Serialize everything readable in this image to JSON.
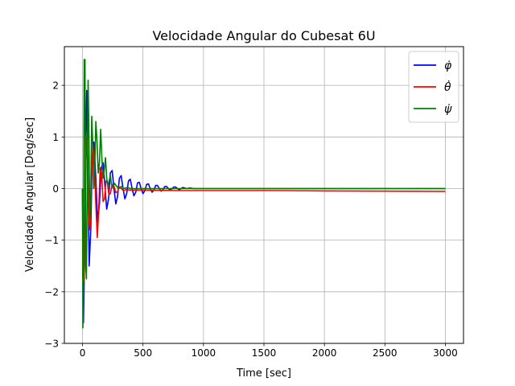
{
  "chart_data": {
    "type": "line",
    "title": "Velocidade Angular do Cubesat 6U",
    "xlabel": "Time [sec]",
    "ylabel": "Velocidade Angular [Deg/sec]",
    "xlim": [
      -150,
      3150
    ],
    "ylim": [
      -3,
      2.75
    ],
    "xticks": [
      0,
      500,
      1000,
      1500,
      2000,
      2500,
      3000
    ],
    "xtick_labels": [
      "0",
      "500",
      "1000",
      "1500",
      "2000",
      "2500",
      "3000"
    ],
    "yticks": [
      -3,
      -2,
      -1,
      0,
      1,
      2
    ],
    "ytick_labels": [
      "−3",
      "−2",
      "−1",
      "0",
      "1",
      "2"
    ],
    "grid": true,
    "legend_position": "top-right",
    "series": [
      {
        "name": "φ̇",
        "color": "#0000ff",
        "points": [
          [
            0,
            0
          ],
          [
            8,
            -2.6
          ],
          [
            16,
            -1.4
          ],
          [
            25,
            0.7
          ],
          [
            35,
            1.9
          ],
          [
            45,
            0.3
          ],
          [
            55,
            -1.5
          ],
          [
            68,
            -0.8
          ],
          [
            80,
            0.6
          ],
          [
            95,
            0.9
          ],
          [
            110,
            0.2
          ],
          [
            125,
            -0.65
          ],
          [
            140,
            -0.3
          ],
          [
            155,
            0.4
          ],
          [
            170,
            0.5
          ],
          [
            185,
            0.05
          ],
          [
            200,
            -0.4
          ],
          [
            215,
            -0.2
          ],
          [
            230,
            0.3
          ],
          [
            245,
            0.35
          ],
          [
            260,
            0.0
          ],
          [
            275,
            -0.3
          ],
          [
            290,
            -0.15
          ],
          [
            305,
            0.2
          ],
          [
            320,
            0.25
          ],
          [
            335,
            0.0
          ],
          [
            350,
            -0.2
          ],
          [
            365,
            -0.1
          ],
          [
            380,
            0.15
          ],
          [
            395,
            0.18
          ],
          [
            410,
            0.0
          ],
          [
            425,
            -0.14
          ],
          [
            440,
            -0.07
          ],
          [
            455,
            0.11
          ],
          [
            470,
            0.12
          ],
          [
            485,
            0.0
          ],
          [
            500,
            -0.1
          ],
          [
            515,
            -0.04
          ],
          [
            530,
            0.08
          ],
          [
            545,
            0.09
          ],
          [
            560,
            0.0
          ],
          [
            575,
            -0.07
          ],
          [
            590,
            -0.03
          ],
          [
            605,
            0.06
          ],
          [
            620,
            0.06
          ],
          [
            635,
            0.0
          ],
          [
            650,
            -0.05
          ],
          [
            665,
            -0.02
          ],
          [
            680,
            0.04
          ],
          [
            695,
            0.04
          ],
          [
            710,
            0.0
          ],
          [
            725,
            -0.03
          ],
          [
            740,
            0.0
          ],
          [
            755,
            0.03
          ],
          [
            770,
            0.03
          ],
          [
            785,
            0.0
          ],
          [
            800,
            -0.02
          ],
          [
            830,
            0.02
          ],
          [
            860,
            0.0
          ],
          [
            890,
            0.01
          ],
          [
            920,
            0.0
          ],
          [
            1000,
            0.0
          ],
          [
            1500,
            0.0
          ],
          [
            2000,
            0.0
          ],
          [
            2500,
            0.0
          ],
          [
            3000,
            0.0
          ]
        ]
      },
      {
        "name": "θ̇",
        "color": "#ff0000",
        "points": [
          [
            0,
            0
          ],
          [
            6,
            -1.2
          ],
          [
            14,
            -1.8
          ],
          [
            22,
            -0.2
          ],
          [
            32,
            1.0
          ],
          [
            42,
            0.5
          ],
          [
            52,
            -0.6
          ],
          [
            62,
            -0.8
          ],
          [
            74,
            0.2
          ],
          [
            86,
            0.85
          ],
          [
            98,
            0.5
          ],
          [
            110,
            -0.3
          ],
          [
            122,
            -0.95
          ],
          [
            134,
            -0.4
          ],
          [
            146,
            0.4
          ],
          [
            158,
            0.3
          ],
          [
            170,
            -0.25
          ],
          [
            182,
            -0.2
          ],
          [
            194,
            0.15
          ],
          [
            206,
            0.12
          ],
          [
            218,
            -0.12
          ],
          [
            230,
            -0.1
          ],
          [
            245,
            0.08
          ],
          [
            260,
            0.05
          ],
          [
            275,
            -0.08
          ],
          [
            290,
            -0.06
          ],
          [
            305,
            0.03
          ],
          [
            320,
            0.0
          ],
          [
            340,
            -0.04
          ],
          [
            360,
            -0.02
          ],
          [
            400,
            -0.03
          ],
          [
            500,
            -0.03
          ],
          [
            800,
            -0.04
          ],
          [
            1200,
            -0.04
          ],
          [
            1600,
            -0.04
          ],
          [
            2000,
            -0.045
          ],
          [
            2500,
            -0.05
          ],
          [
            3000,
            -0.055
          ]
        ]
      },
      {
        "name": "ψ̇",
        "color": "#008000",
        "points": [
          [
            0,
            0
          ],
          [
            3,
            -2.7
          ],
          [
            8,
            -1.8
          ],
          [
            14,
            2.5
          ],
          [
            20,
            2.5
          ],
          [
            26,
            -1.5
          ],
          [
            32,
            -1.75
          ],
          [
            40,
            0.4
          ],
          [
            46,
            2.1
          ],
          [
            52,
            1.2
          ],
          [
            60,
            -0.6
          ],
          [
            68,
            -0.2
          ],
          [
            76,
            1.4
          ],
          [
            84,
            0.9
          ],
          [
            92,
            0.0
          ],
          [
            100,
            0.3
          ],
          [
            110,
            1.3
          ],
          [
            120,
            0.9
          ],
          [
            130,
            0.3
          ],
          [
            140,
            0.5
          ],
          [
            150,
            1.15
          ],
          [
            160,
            0.6
          ],
          [
            170,
            0.2
          ],
          [
            180,
            0.35
          ],
          [
            190,
            0.6
          ],
          [
            200,
            0.2
          ],
          [
            210,
            0.05
          ],
          [
            220,
            0.15
          ],
          [
            230,
            0.25
          ],
          [
            240,
            0.08
          ],
          [
            250,
            0.02
          ],
          [
            265,
            0.1
          ],
          [
            280,
            0.05
          ],
          [
            300,
            0.0
          ],
          [
            320,
            0.04
          ],
          [
            340,
            0.0
          ],
          [
            370,
            0.02
          ],
          [
            400,
            0.0
          ],
          [
            500,
            0.0
          ],
          [
            1000,
            0.0
          ],
          [
            1500,
            0.0
          ],
          [
            2000,
            0.0
          ],
          [
            2500,
            0.0
          ],
          [
            3000,
            0.0
          ]
        ]
      }
    ]
  }
}
